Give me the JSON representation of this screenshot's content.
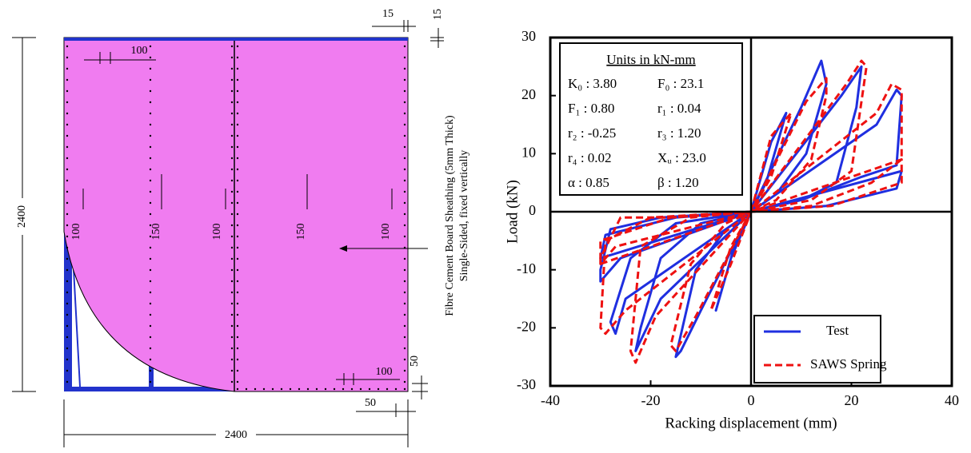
{
  "diagram": {
    "labels": [
      "15",
      "15",
      "100",
      "100",
      "150",
      "100",
      "150",
      "100",
      "100",
      "50",
      "50",
      "2400",
      "2400",
      "Fibre Cement Board Sheathing (5mm Thick)",
      "Single-Sided, fixed vertically"
    ]
  },
  "chart_data": {
    "type": "line",
    "xlabel": "Racking displacement (mm)",
    "ylabel": "Load (kN)",
    "xlim": [
      -40,
      40
    ],
    "ylim": [
      -30,
      30
    ],
    "xticks": [
      -40,
      -20,
      0,
      20,
      40
    ],
    "yticks": [
      -30,
      -20,
      -10,
      0,
      10,
      20,
      30
    ],
    "legend": "lower right",
    "annotation_title": "Units in kN-mm",
    "annotations": [
      "K₀ : 3.80",
      "F₀ : 23.1",
      "F₁ : 0.80",
      "r₁ : 0.04",
      "r₂ : -0.25",
      "r₃ : 1.20",
      "r₄ : 0.02",
      "Xᵤ : 23.0",
      "α : 0.85",
      "β : 1.20"
    ],
    "series": [
      {
        "name": "Test",
        "color": "#1f2fe0",
        "dash": false,
        "x": [
          0,
          4,
          7,
          3,
          0,
          -4,
          -7,
          -3,
          0,
          10,
          14,
          15,
          11,
          5,
          0,
          -10,
          -14,
          -15,
          -11,
          -5,
          0,
          18,
          22,
          21,
          17,
          10,
          0,
          -18,
          -23,
          -22,
          -18,
          -10,
          0,
          25,
          29,
          30,
          29,
          22,
          10,
          0,
          -25,
          -27,
          -28,
          -24,
          -15,
          0,
          -26,
          -30,
          -30,
          -28,
          -18,
          0,
          30,
          29,
          15,
          0,
          -30,
          -29,
          -15,
          0
        ],
        "values": [
          0,
          12,
          17,
          5,
          0,
          -8,
          -17,
          -5,
          0,
          18,
          26,
          22,
          10,
          3,
          0,
          -17,
          -24,
          -25,
          -10,
          -3,
          0,
          20,
          25,
          18,
          5,
          2,
          0,
          -15,
          -24,
          -20,
          -8,
          -2,
          0,
          15,
          21,
          20,
          8,
          6,
          2,
          0,
          -15,
          -21,
          -19,
          -8,
          -2,
          0,
          -8,
          -12,
          -10,
          -3,
          -1,
          0,
          7,
          4,
          1,
          0,
          -8,
          -4,
          -1,
          0
        ]
      },
      {
        "name": "SAWS Spring",
        "color": "#ee1111",
        "dash": true,
        "x": [
          0,
          4,
          8,
          4,
          0,
          -4,
          -8,
          -4,
          0,
          11,
          15,
          15,
          12,
          5,
          0,
          -11,
          -15,
          -16,
          -12,
          -5,
          0,
          19,
          22,
          23,
          20,
          12,
          0,
          -19,
          -23,
          -24,
          -22,
          -12,
          0,
          25,
          28,
          30,
          30,
          24,
          12,
          0,
          -25,
          -29,
          -30,
          -29,
          -20,
          0,
          -27,
          -30,
          -30,
          -26,
          -16,
          0,
          30,
          30,
          16,
          0,
          -30,
          -30,
          -16,
          0
        ],
        "values": [
          0,
          13,
          17,
          6,
          0,
          -9,
          -17,
          -6,
          0,
          19,
          23,
          20,
          9,
          2,
          0,
          -18,
          -24,
          -23,
          -9,
          -2,
          0,
          22,
          26,
          25,
          7,
          2,
          0,
          -18,
          -26,
          -24,
          -6,
          -1,
          0,
          17,
          22,
          21,
          9,
          5,
          1,
          0,
          -17,
          -21,
          -20,
          -5,
          -1,
          0,
          -6,
          -9,
          -8,
          -1,
          -1,
          0,
          9,
          5,
          1,
          0,
          -9,
          -5,
          -1,
          0
        ]
      }
    ]
  }
}
